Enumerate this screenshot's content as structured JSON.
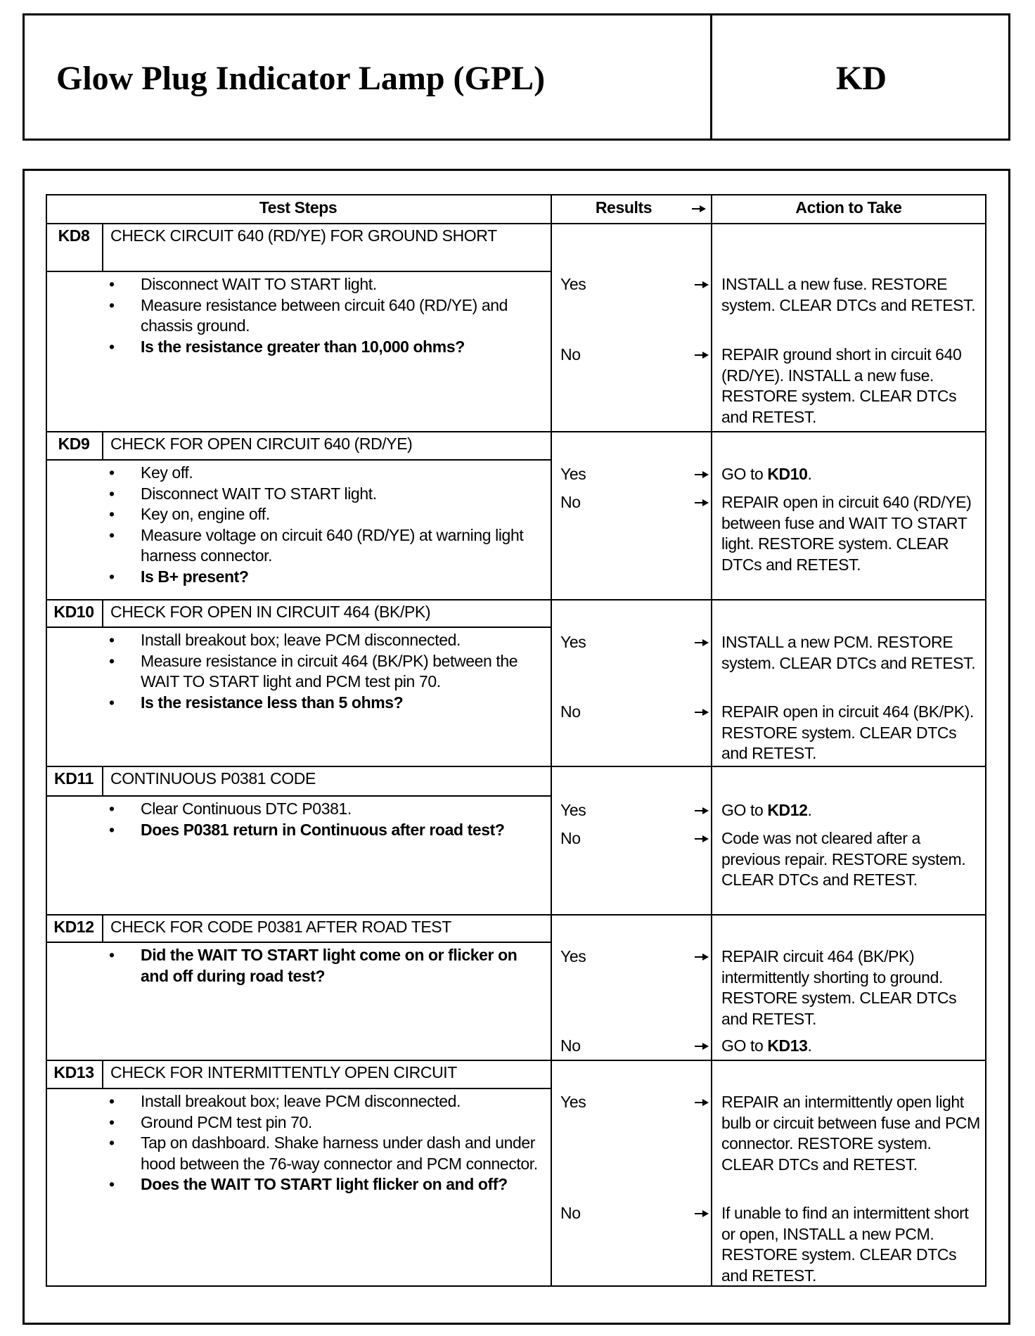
{
  "header": {
    "title": "Glow Plug Indicator Lamp (GPL)",
    "code": "KD"
  },
  "table": {
    "headers": [
      "Test Steps",
      "Results",
      "Action to Take"
    ],
    "steps": [
      {
        "id": "KD8",
        "title": "CHECK CIRCUIT 640 (RD/YE) FOR GROUND SHORT",
        "bullets": [
          {
            "text": "Disconnect WAIT TO START light."
          },
          {
            "text": "Measure resistance between circuit 640 (RD/YE) and chassis ground."
          },
          {
            "text": "Is the resistance greater than 10,000 ohms?",
            "bold": true
          }
        ],
        "results": [
          {
            "result": "Yes",
            "action": [
              {
                "text": "INSTALL a new fuse. RESTORE system. CLEAR DTCs and RETEST."
              }
            ]
          },
          {
            "result": "No",
            "action": [
              {
                "text": "REPAIR ground short in circuit 640 (RD/YE). INSTALL a new fuse. RESTORE system. CLEAR DTCs and RETEST."
              }
            ]
          }
        ]
      },
      {
        "id": "KD9",
        "title": "CHECK FOR OPEN CIRCUIT 640 (RD/YE)",
        "bullets": [
          {
            "text": "Key off."
          },
          {
            "text": "Disconnect WAIT TO START light."
          },
          {
            "text": "Key on, engine off."
          },
          {
            "text": "Measure voltage on circuit 640 (RD/YE) at warning light harness connector."
          },
          {
            "text": "Is B+ present?",
            "bold": true
          }
        ],
        "results": [
          {
            "result": "Yes",
            "action": [
              {
                "text": "GO to "
              },
              {
                "text": "KD10",
                "bold": true
              },
              {
                "text": "."
              }
            ]
          },
          {
            "result": "No",
            "action": [
              {
                "text": "REPAIR open in circuit 640 (RD/YE) between fuse and WAIT TO START light. RESTORE system. CLEAR DTCs and RETEST."
              }
            ]
          }
        ]
      },
      {
        "id": "KD10",
        "title": "CHECK FOR OPEN IN CIRCUIT 464 (BK/PK)",
        "bullets": [
          {
            "text": "Install breakout box; leave PCM disconnected."
          },
          {
            "text": "Measure resistance in circuit 464 (BK/PK) between the WAIT TO START light and PCM test pin 70."
          },
          {
            "text": "Is the resistance less than 5 ohms?",
            "bold": true
          }
        ],
        "results": [
          {
            "result": "Yes",
            "action": [
              {
                "text": "INSTALL a new PCM. RESTORE system. CLEAR DTCs and RETEST."
              }
            ]
          },
          {
            "result": "No",
            "action": [
              {
                "text": "REPAIR open in circuit 464 (BK/PK). RESTORE system. CLEAR DTCs and RETEST."
              }
            ]
          }
        ]
      },
      {
        "id": "KD11",
        "title": "CONTINUOUS P0381 CODE",
        "bullets": [
          {
            "text": "Clear Continuous DTC P0381."
          },
          {
            "text": "Does P0381 return in Continuous after road test?",
            "bold": true
          }
        ],
        "results": [
          {
            "result": "Yes",
            "action": [
              {
                "text": "GO to "
              },
              {
                "text": "KD12",
                "bold": true
              },
              {
                "text": "."
              }
            ]
          },
          {
            "result": "No",
            "action": [
              {
                "text": "Code was not cleared after a previous repair. RESTORE system. CLEAR DTCs and RETEST."
              }
            ]
          }
        ]
      },
      {
        "id": "KD12",
        "title": "CHECK FOR CODE P0381 AFTER ROAD TEST",
        "bullets": [
          {
            "text": "Did the WAIT TO START light come on or flicker on and off during road test?",
            "bold": true
          }
        ],
        "results": [
          {
            "result": "Yes",
            "action": [
              {
                "text": "REPAIR circuit 464 (BK/PK) intermittently shorting to ground. RESTORE system. CLEAR DTCs and RETEST."
              }
            ]
          },
          {
            "result": "No",
            "action": [
              {
                "text": "GO to "
              },
              {
                "text": "KD13",
                "bold": true
              },
              {
                "text": "."
              }
            ]
          }
        ]
      },
      {
        "id": "KD13",
        "title": "CHECK FOR INTERMITTENTLY OPEN CIRCUIT",
        "bullets": [
          {
            "text": "Install breakout box; leave PCM disconnected."
          },
          {
            "text": "Ground PCM test pin 70."
          },
          {
            "text": "Tap on dashboard. Shake harness under dash and under hood between the 76-way connector and PCM connector."
          },
          {
            "text": "Does the WAIT TO START light flicker on and off?",
            "bold": true
          }
        ],
        "results": [
          {
            "result": "Yes",
            "action": [
              {
                "text": "REPAIR an intermittently open light bulb or circuit between fuse and PCM connector. RESTORE system. CLEAR DTCs and RETEST."
              }
            ]
          },
          {
            "result": "No",
            "action": [
              {
                "text": "If unable to find an intermittent short or open, INSTALL a new PCM. RESTORE system. CLEAR DTCs and RETEST."
              }
            ]
          }
        ]
      }
    ]
  }
}
